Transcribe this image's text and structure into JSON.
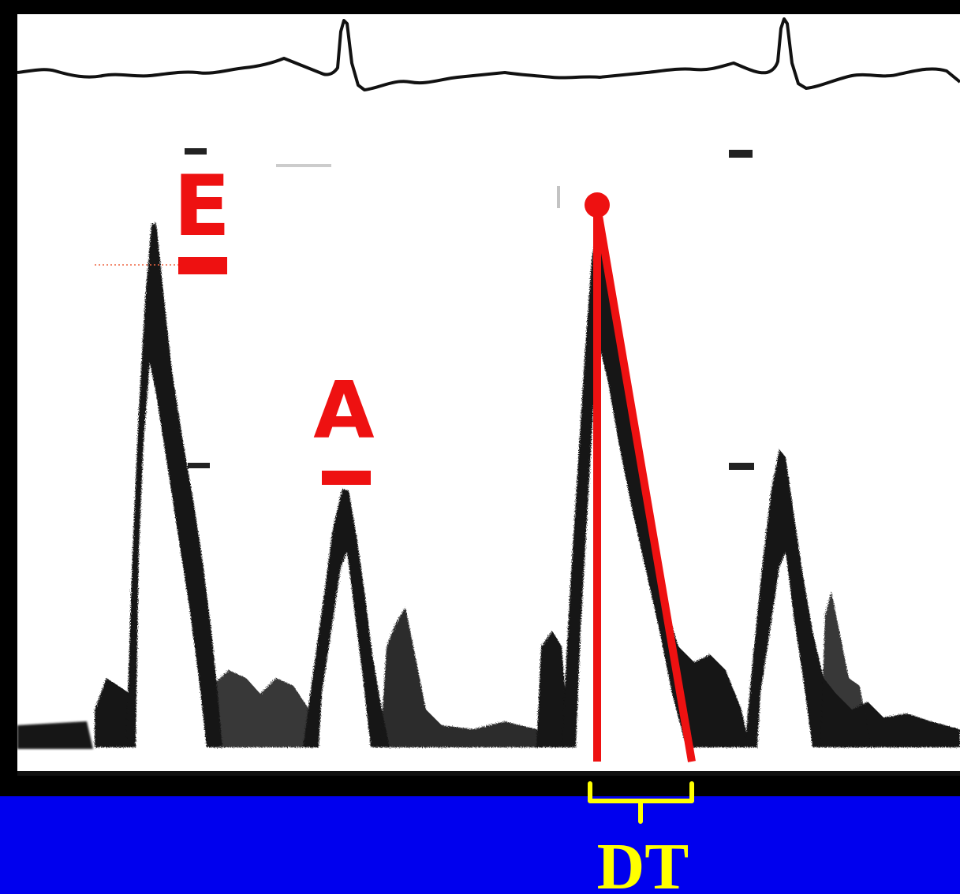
{
  "labels": {
    "e_wave": "E",
    "a_wave": "A",
    "deceleration_time": "DT"
  },
  "colors": {
    "background": "#0000ee",
    "annotation_red": "#ee1111",
    "caption_yellow": "#ffff00",
    "trace_black": "#111111",
    "panel_white": "#ffffff"
  },
  "icons": {
    "bracket": "dt-bracket-icon",
    "peak_marker": "peak-marker-icon"
  }
}
